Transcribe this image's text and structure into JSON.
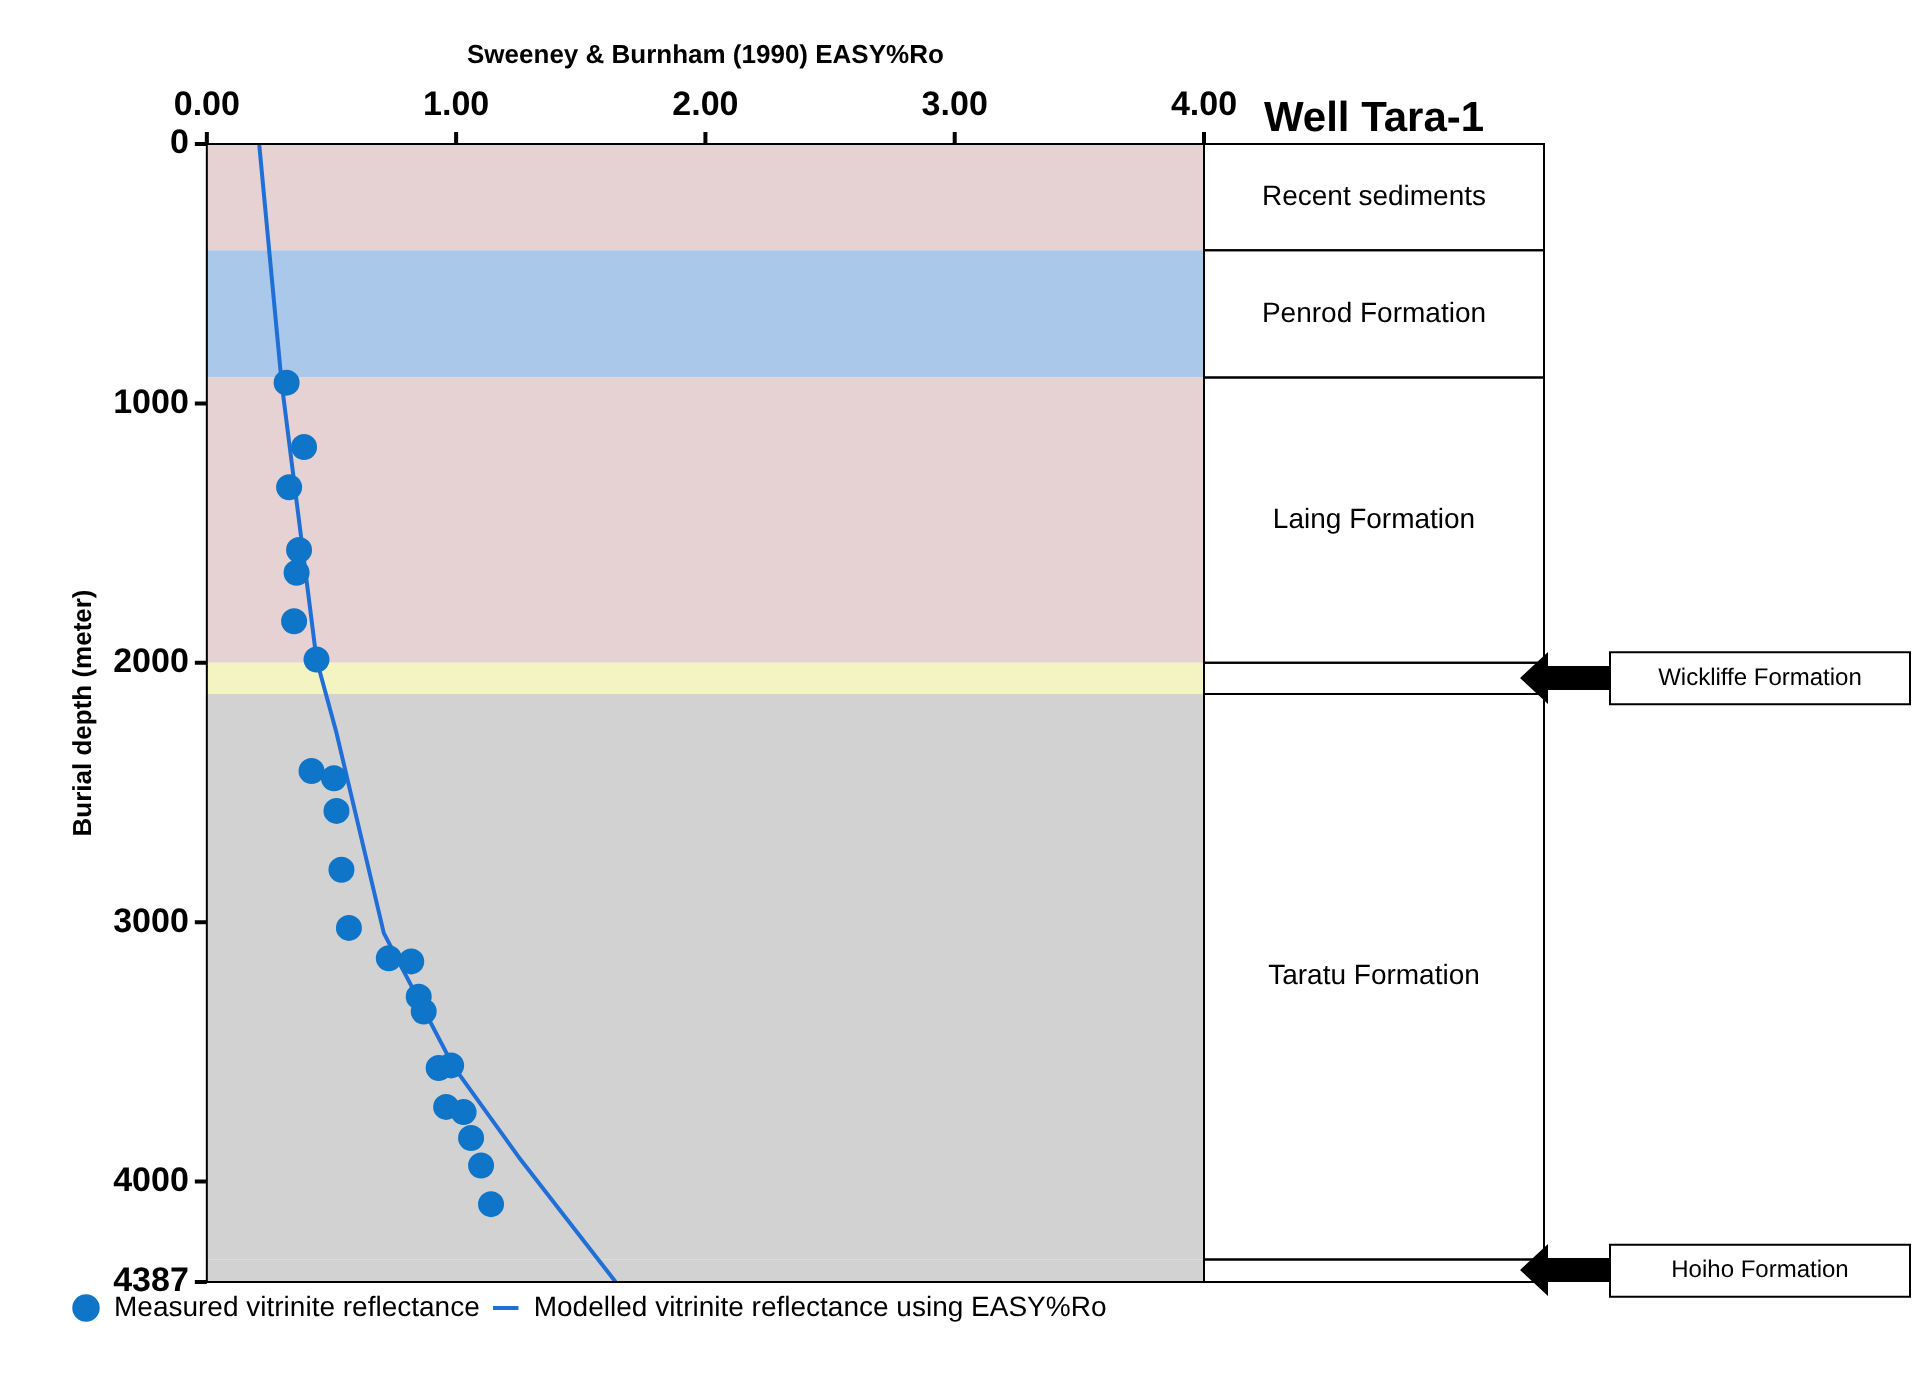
{
  "chart_data": {
    "type": "scatter",
    "title": "Well Tara-1",
    "xlabel": "Sweeney & Burnham (1990) EASY%Ro",
    "ylabel": "Burial depth (meter)",
    "xlim": [
      0,
      4
    ],
    "xticks": [
      {
        "value": 0,
        "label": "0.00"
      },
      {
        "value": 1,
        "label": "1.00"
      },
      {
        "value": 2,
        "label": "2.00"
      },
      {
        "value": 3,
        "label": "3.00"
      },
      {
        "value": 4,
        "label": "4.00"
      }
    ],
    "ylim": [
      4387,
      0
    ],
    "yticks": [
      0,
      1000,
      2000,
      3000,
      4000,
      4387
    ],
    "grid": false,
    "legend": "bottom",
    "series": [
      {
        "name": "Measured vitrinite reflectance",
        "type": "scatter",
        "marker": "circle",
        "color": "#0f75c8",
        "x": [
          0.32,
          0.39,
          0.33,
          0.37,
          0.36,
          0.35,
          0.44,
          0.42,
          0.51,
          0.52,
          0.54,
          0.57,
          0.73,
          0.82,
          0.85,
          0.87,
          0.93,
          0.98,
          0.96,
          1.03,
          1.06,
          1.1,
          1.14
        ],
        "values": [
          920,
          1168,
          1323,
          1565,
          1653,
          1840,
          1987,
          2417,
          2445,
          2571,
          2798,
          3022,
          3139,
          3151,
          3287,
          3344,
          3562,
          3552,
          3712,
          3732,
          3832,
          3938,
          4087
        ]
      },
      {
        "name": "Modelled vitrinite reflectance using EASY%Ro",
        "type": "line",
        "marker": "none",
        "line_style": "solid",
        "color": "#1f6fd6",
        "x": [
          0.21,
          0.3,
          0.44,
          0.52,
          0.71,
          0.99,
          1.26,
          1.64
        ],
        "values": [
          0,
          920,
          1987,
          2270,
          3042,
          3557,
          3917,
          4387
        ]
      }
    ],
    "bands": [
      {
        "axis": "y",
        "from": 0,
        "to": 410,
        "label": "Recent sediments",
        "color": "#e6d2d2"
      },
      {
        "axis": "y",
        "from": 410,
        "to": 900,
        "label": "Penrod Formation",
        "color": "#a9c8ea"
      },
      {
        "axis": "y",
        "from": 900,
        "to": 2000,
        "label": "Laing Formation",
        "color": "#e6d2d2"
      },
      {
        "axis": "y",
        "from": 2000,
        "to": 2120,
        "color": "#f4f4c2"
      },
      {
        "axis": "y",
        "from": 2120,
        "to": 4300,
        "label": "Taratu Formation",
        "color": "#d2d2d2"
      },
      {
        "axis": "y",
        "from": 4300,
        "to": 4387,
        "color": "#d2d2d2"
      }
    ],
    "annotations": [
      "Wickliffe Formation",
      "Hoiho Formation"
    ]
  }
}
